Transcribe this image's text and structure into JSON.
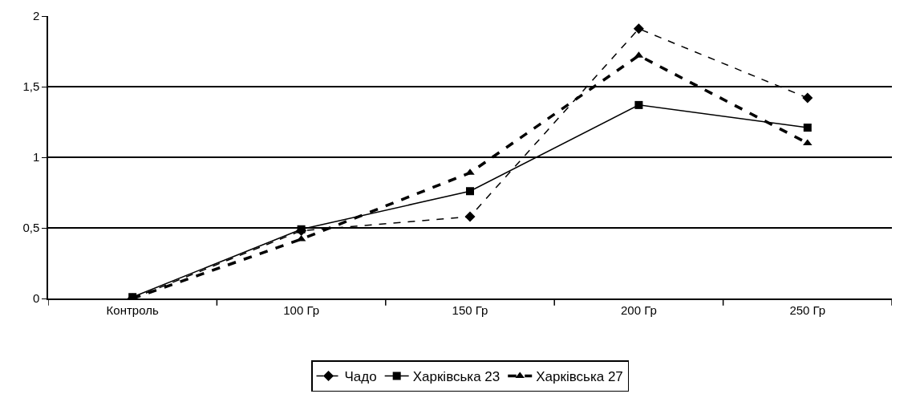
{
  "chart_data": {
    "type": "line",
    "categories": [
      "Контроль",
      "100 Гр",
      "150 Гр",
      "200 Гр",
      "250 Гр"
    ],
    "series": [
      {
        "name": "Чадо",
        "color": "#000000",
        "marker": "diamond",
        "line_style": "dashed",
        "values": [
          0,
          0.48,
          0.58,
          1.91,
          1.42
        ]
      },
      {
        "name": "Харківська 23",
        "color": "#000000",
        "marker": "square",
        "line_style": "solid",
        "values": [
          0.01,
          0.49,
          0.76,
          1.37,
          1.21
        ]
      },
      {
        "name": "Харківська 27",
        "color": "#000000",
        "marker": "triangle",
        "line_style": "dotted",
        "values": [
          0,
          0.42,
          0.89,
          1.72,
          1.1
        ]
      }
    ],
    "ylim": [
      0,
      2
    ],
    "yticks": [
      0,
      {
        "value": 0.5,
        "label": "0,5"
      },
      1,
      {
        "value": 1.5,
        "label": "1,5"
      },
      2
    ],
    "grid": "y",
    "legend": "bottom"
  }
}
